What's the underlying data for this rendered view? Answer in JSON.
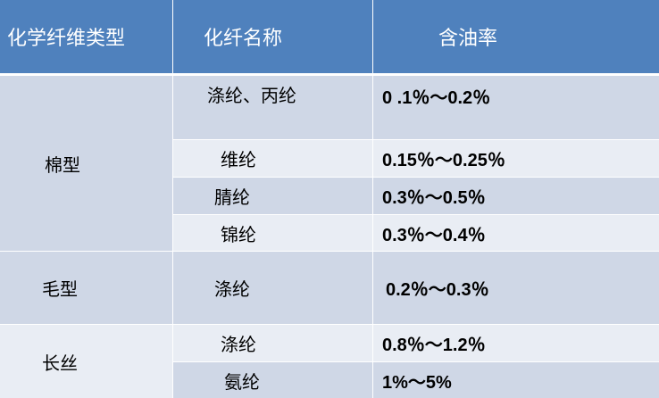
{
  "header": {
    "type": "化学纤维类型",
    "name": "化纤名称",
    "oil": "含油率"
  },
  "groups": [
    {
      "type": "棉型",
      "rows": [
        {
          "name": "涤纶、丙纶",
          "oil": "0 .1％～0.2％"
        },
        {
          "name": "维纶",
          "oil": "0.15％～0.25％"
        },
        {
          "name": "腈纶",
          "oil": "0.3％～0.5％"
        },
        {
          "name": "锦纶",
          "oil": "0.3％～0.4％"
        }
      ]
    },
    {
      "type": "毛型",
      "rows": [
        {
          "name": "涤纶",
          "oil": "0.2％～0.3％"
        }
      ]
    },
    {
      "type": "长丝",
      "rows": [
        {
          "name": "涤纶",
          "oil": "0.8％～1.2％"
        },
        {
          "name": "氨纶",
          "oil": "1%～5%"
        }
      ]
    }
  ],
  "colors": {
    "header": "#4f81bd",
    "row_dark": "#cfd7e6",
    "row_light": "#e9edf4"
  }
}
